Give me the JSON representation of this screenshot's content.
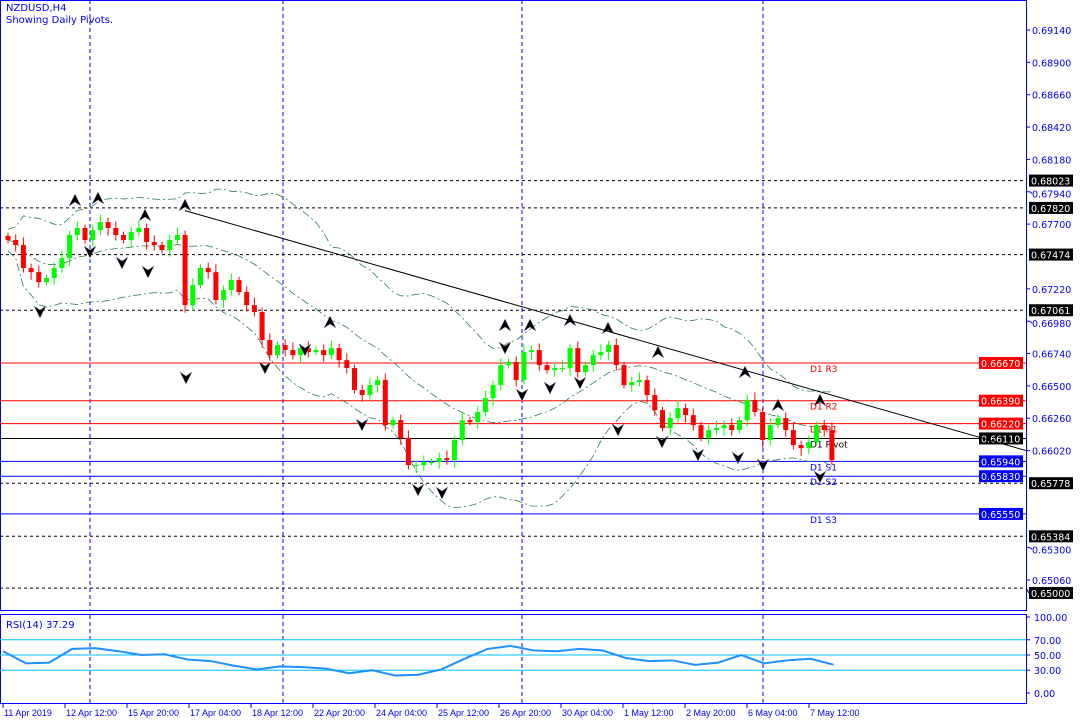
{
  "header": {
    "symbol": "NZDUSD,H4",
    "indicator_note": "Showing Daily Pivots."
  },
  "rsi_label": "RSI(14) 37.29",
  "colors": {
    "axis": "#0000ff",
    "bull": "#00ff00",
    "bear": "#ff0000",
    "bands": "#2e7d4f",
    "rsi_line": "#1e90ff",
    "rsi_levels": "#00bfff",
    "resistance": "#ff0000",
    "support": "#0000ff",
    "pivot": "#000000"
  },
  "chart_data": {
    "type": "candlestick",
    "timeframe": "H4",
    "ylim": [
      0.6494,
      0.6935
    ],
    "price_ticks": [
      "0.69140",
      "0.68900",
      "0.68660",
      "0.68420",
      "0.68180",
      "0.67940",
      "0.67700",
      "0.67220",
      "0.66980",
      "0.66740",
      "0.66500",
      "0.66260",
      "0.66020",
      "0.65300",
      "0.65060"
    ],
    "time_ticks": [
      "11 Apr 2019",
      "12 Apr 12:00",
      "15 Apr 20:00",
      "17 Apr 04:00",
      "18 Apr 12:00",
      "22 Apr 20:00",
      "24 Apr 04:00",
      "25 Apr 12:00",
      "26 Apr 20:00",
      "30 Apr 04:00",
      "1 May 12:00",
      "2 May 20:00",
      "6 May 04:00",
      "7 May 12:00"
    ],
    "day_separators": [
      "12 Apr",
      "15 Apr",
      "26 Apr",
      "6 May"
    ],
    "closes": [
      0.67582,
      0.67545,
      0.67374,
      0.67344,
      0.6727,
      0.673,
      0.67374,
      0.67448,
      0.67619,
      0.67671,
      0.67582,
      0.67656,
      0.67715,
      0.67671,
      0.67619,
      0.67582,
      0.67641,
      0.67671,
      0.67567,
      0.67545,
      0.67508,
      0.67582,
      0.67619,
      0.67099,
      0.67248,
      0.67374,
      0.67344,
      0.67137,
      0.67211,
      0.67285,
      0.67196,
      0.67099,
      0.67048,
      0.6684,
      0.66728,
      0.66803,
      0.66766,
      0.66728,
      0.6678,
      0.66751,
      0.66766,
      0.66728,
      0.6678,
      0.66691,
      0.66632,
      0.66469,
      0.66432,
      0.66506,
      0.66543,
      0.66209,
      0.66246,
      0.66113,
      0.65912,
      0.65912,
      0.65935,
      0.65935,
      0.65964,
      0.65949,
      0.66098,
      0.66246,
      0.66231,
      0.66306,
      0.66409,
      0.66506,
      0.66654,
      0.66677,
      0.66543,
      0.66751,
      0.66766,
      0.66654,
      0.66617,
      0.66632,
      0.66632,
      0.6678,
      0.66602,
      0.66654,
      0.66728,
      0.66751,
      0.66803,
      0.66654,
      0.66506,
      0.66528,
      0.66543,
      0.66432,
      0.6632,
      0.66187,
      0.66261,
      0.66335,
      0.66283,
      0.66209,
      0.66113,
      0.66172,
      0.66187,
      0.66209,
      0.66172,
      0.66246,
      0.66395,
      0.66306,
      0.66098,
      0.66209,
      0.66261,
      0.66172,
      0.66061,
      0.66038,
      0.66083,
      0.66209,
      0.66172,
      0.65949
    ],
    "trendline": {
      "from_price": 0.678,
      "to_price": 0.6602
    },
    "horizontal_lines": [
      {
        "price": "0.68023",
        "style": "dashed",
        "color": "#000000"
      },
      {
        "price": "0.67820",
        "style": "dashed",
        "color": "#000000"
      },
      {
        "price": "0.67474",
        "style": "dashed",
        "color": "#000000"
      },
      {
        "price": "0.67061",
        "style": "dashed",
        "color": "#000000"
      },
      {
        "price": "0.65778",
        "style": "dashed",
        "color": "#000000"
      },
      {
        "price": "0.65384",
        "style": "dashed",
        "color": "#000000"
      },
      {
        "price": "0.65000",
        "style": "dashed",
        "color": "#000000"
      }
    ],
    "pivots": [
      {
        "label": "D1 R3",
        "price": "0.66670",
        "color": "#ff0000"
      },
      {
        "label": "D1 R2",
        "price": "0.66390",
        "color": "#ff0000"
      },
      {
        "label": "D1 R1",
        "price": "0.66220",
        "color": "#ff0000"
      },
      {
        "label": "D1 Pivot",
        "price": "0.66110",
        "color": "#000000"
      },
      {
        "label": "D1 S1",
        "price": "0.65940",
        "color": "#0000ff"
      },
      {
        "label": "D1 S2",
        "price": "0.65830",
        "color": "#0000ff"
      },
      {
        "label": "D1 S3",
        "price": "0.65550",
        "color": "#0000ff"
      }
    ],
    "rsi": {
      "period": 14,
      "current": 37.29,
      "levels": [
        70,
        50,
        30
      ],
      "ticks": [
        "100.00",
        "70.00",
        "50.00",
        "30.00",
        "0.00"
      ],
      "values": [
        55,
        39,
        40,
        58,
        59,
        55,
        50,
        51,
        44,
        42,
        36,
        31,
        35,
        34,
        32,
        26,
        30,
        23,
        24,
        31,
        45,
        58,
        62,
        56,
        55,
        58,
        56,
        46,
        42,
        43,
        37,
        40,
        50,
        39,
        43,
        45,
        37.29
      ]
    }
  }
}
